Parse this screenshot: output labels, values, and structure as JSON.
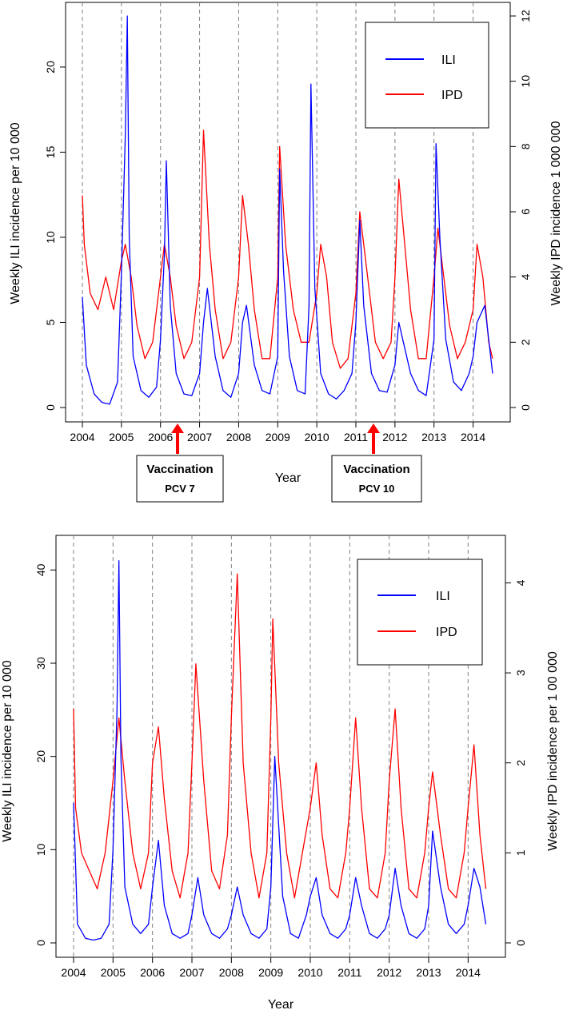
{
  "colors": {
    "ili": "#0000ff",
    "ipd": "#ff0000",
    "grid": "#808080",
    "arrow": "#ff0000"
  },
  "chart_data": [
    {
      "type": "line",
      "xlabel": "Year",
      "ylabel_left": "Weekly ILI incidence per 10 000",
      "ylabel_right": "Weekly IPD incidence 1 000 000",
      "x_ticks": [
        "2004",
        "2005",
        "2006",
        "2007",
        "2008",
        "2009",
        "2010",
        "2011",
        "2012",
        "2013",
        "2014"
      ],
      "xlim": [
        2004,
        2014.5
      ],
      "ylim_left": [
        0,
        23
      ],
      "ylim_right": [
        0,
        12
      ],
      "y_ticks_left": [
        "0",
        "5",
        "10",
        "15",
        "20"
      ],
      "y_ticks_right": [
        "0",
        "2",
        "4",
        "6",
        "8",
        "10",
        "12"
      ],
      "grid": "vertical dashed lines at each year",
      "legend_position": "top-right",
      "series": [
        {
          "name": "ILI",
          "axis": "left",
          "x": [
            2004.0,
            2004.1,
            2004.3,
            2004.5,
            2004.7,
            2004.9,
            2005.0,
            2005.1,
            2005.15,
            2005.2,
            2005.3,
            2005.5,
            2005.7,
            2005.9,
            2006.0,
            2006.1,
            2006.15,
            2006.25,
            2006.4,
            2006.6,
            2006.8,
            2007.0,
            2007.1,
            2007.2,
            2007.4,
            2007.6,
            2007.8,
            2008.0,
            2008.1,
            2008.2,
            2008.4,
            2008.6,
            2008.8,
            2009.0,
            2009.05,
            2009.15,
            2009.3,
            2009.5,
            2009.7,
            2009.8,
            2009.85,
            2009.95,
            2010.1,
            2010.3,
            2010.5,
            2010.7,
            2010.9,
            2011.0,
            2011.1,
            2011.2,
            2011.4,
            2011.6,
            2011.8,
            2012.0,
            2012.1,
            2012.2,
            2012.4,
            2012.6,
            2012.8,
            2013.0,
            2013.05,
            2013.15,
            2013.3,
            2013.5,
            2013.7,
            2013.9,
            2014.0,
            2014.1,
            2014.3,
            2014.5
          ],
          "y": [
            6.5,
            2.5,
            0.8,
            0.3,
            0.2,
            1.5,
            8,
            16,
            23,
            10,
            3,
            1,
            0.6,
            1.2,
            4,
            9,
            14.5,
            6,
            2,
            0.8,
            0.7,
            2,
            5,
            7,
            3,
            1,
            0.6,
            2,
            5,
            6,
            2.5,
            1,
            0.8,
            3,
            14,
            8,
            3,
            1,
            0.8,
            6,
            19,
            7,
            2,
            0.8,
            0.5,
            1,
            2,
            5,
            11,
            6,
            2,
            1,
            0.9,
            2.5,
            5,
            4,
            2,
            1,
            0.7,
            4,
            15.5,
            10,
            4,
            1.5,
            1,
            2,
            3,
            5,
            6,
            2
          ]
        },
        {
          "name": "IPD",
          "axis": "right",
          "x": [
            2004.0,
            2004.05,
            2004.2,
            2004.4,
            2004.6,
            2004.8,
            2005.0,
            2005.1,
            2005.25,
            2005.4,
            2005.6,
            2005.8,
            2006.0,
            2006.1,
            2006.25,
            2006.4,
            2006.6,
            2006.8,
            2007.0,
            2007.1,
            2007.25,
            2007.4,
            2007.6,
            2007.8,
            2008.0,
            2008.1,
            2008.25,
            2008.4,
            2008.6,
            2008.8,
            2009.0,
            2009.05,
            2009.2,
            2009.4,
            2009.6,
            2009.8,
            2010.0,
            2010.1,
            2010.25,
            2010.4,
            2010.6,
            2010.8,
            2011.0,
            2011.1,
            2011.3,
            2011.5,
            2011.7,
            2011.9,
            2012.0,
            2012.1,
            2012.25,
            2012.4,
            2012.6,
            2012.8,
            2013.0,
            2013.1,
            2013.25,
            2013.4,
            2013.6,
            2013.8,
            2014.0,
            2014.1,
            2014.25,
            2014.4,
            2014.5
          ],
          "y": [
            6.5,
            5,
            3.5,
            3,
            4,
            3,
            4.5,
            5,
            4,
            2.5,
            1.5,
            2,
            4,
            5,
            4,
            2.5,
            1.5,
            2,
            4,
            8.5,
            5,
            3,
            1.5,
            2,
            4,
            6.5,
            5,
            3,
            1.5,
            1.5,
            4,
            8,
            5,
            3,
            2,
            2,
            3.5,
            5,
            4,
            2,
            1.2,
            1.5,
            3.5,
            6,
            4,
            2,
            1.5,
            2,
            4,
            7,
            5,
            3,
            1.5,
            1.5,
            4,
            5.5,
            4,
            2.5,
            1.5,
            2,
            3,
            5,
            4,
            2,
            1.5
          ]
        }
      ],
      "annotations": [
        {
          "title": "Vaccination",
          "subtitle": "PCV 7",
          "x": 2006.4
        },
        {
          "title": "Vaccination",
          "subtitle": "PCV 10",
          "x": 2011.4
        }
      ]
    },
    {
      "type": "line",
      "xlabel": "Year",
      "ylabel_left": "Weekly ILI incidence per 10 000",
      "ylabel_right": "Weekly IPD incidence per 1 00 000",
      "x_ticks": [
        "2004",
        "2005",
        "2006",
        "2007",
        "2008",
        "2009",
        "2010",
        "2011",
        "2012",
        "2013",
        "2014"
      ],
      "xlim": [
        2004,
        2014.5
      ],
      "ylim_left": [
        0,
        42
      ],
      "ylim_right": [
        0,
        4.35
      ],
      "y_ticks_left": [
        "0",
        "10",
        "20",
        "30",
        "40"
      ],
      "y_ticks_right": [
        "0",
        "1",
        "2",
        "3",
        "4"
      ],
      "grid": "vertical dashed lines at each year",
      "legend_position": "top-right",
      "series": [
        {
          "name": "ILI",
          "axis": "left",
          "x": [
            2004.0,
            2004.1,
            2004.3,
            2004.5,
            2004.7,
            2004.9,
            2005.0,
            2005.1,
            2005.15,
            2005.2,
            2005.3,
            2005.5,
            2005.7,
            2005.9,
            2006.0,
            2006.15,
            2006.3,
            2006.5,
            2006.7,
            2006.9,
            2007.0,
            2007.15,
            2007.3,
            2007.5,
            2007.7,
            2007.9,
            2008.0,
            2008.15,
            2008.3,
            2008.5,
            2008.7,
            2008.9,
            2009.0,
            2009.1,
            2009.3,
            2009.5,
            2009.7,
            2009.9,
            2010.0,
            2010.15,
            2010.3,
            2010.5,
            2010.7,
            2010.9,
            2011.0,
            2011.15,
            2011.3,
            2011.5,
            2011.7,
            2011.9,
            2012.0,
            2012.15,
            2012.3,
            2012.5,
            2012.7,
            2012.9,
            2013.0,
            2013.1,
            2013.3,
            2013.5,
            2013.7,
            2013.9,
            2014.0,
            2014.15,
            2014.3,
            2014.45
          ],
          "y": [
            15,
            2,
            0.5,
            0.3,
            0.5,
            2,
            10,
            25,
            41,
            20,
            6,
            2,
            1,
            2,
            6,
            11,
            4,
            1,
            0.5,
            1,
            3,
            7,
            3,
            1,
            0.5,
            1.5,
            3,
            6,
            3,
            1,
            0.5,
            1.5,
            6,
            20,
            5,
            1,
            0.5,
            3,
            5,
            7,
            3,
            1,
            0.5,
            1.5,
            3,
            7,
            4,
            1,
            0.5,
            1.5,
            3,
            8,
            4,
            1,
            0.5,
            1.5,
            4,
            12,
            6,
            2,
            1,
            2,
            4,
            8,
            6,
            2
          ]
        },
        {
          "name": "IPD",
          "axis": "right",
          "x": [
            2004.0,
            2004.05,
            2004.2,
            2004.4,
            2004.6,
            2004.8,
            2005.0,
            2005.15,
            2005.3,
            2005.5,
            2005.7,
            2005.9,
            2006.0,
            2006.15,
            2006.3,
            2006.5,
            2006.7,
            2006.9,
            2007.0,
            2007.1,
            2007.3,
            2007.5,
            2007.7,
            2007.9,
            2008.0,
            2008.15,
            2008.3,
            2008.5,
            2008.7,
            2008.9,
            2009.0,
            2009.05,
            2009.2,
            2009.4,
            2009.6,
            2009.8,
            2010.0,
            2010.15,
            2010.3,
            2010.5,
            2010.7,
            2010.9,
            2011.0,
            2011.15,
            2011.3,
            2011.5,
            2011.7,
            2011.9,
            2012.0,
            2012.15,
            2012.3,
            2012.5,
            2012.7,
            2012.9,
            2013.0,
            2013.1,
            2013.3,
            2013.5,
            2013.7,
            2013.9,
            2014.0,
            2014.15,
            2014.3,
            2014.45
          ],
          "y": [
            2.6,
            1.5,
            1,
            0.8,
            0.6,
            1,
            1.8,
            2.5,
            1.8,
            1,
            0.6,
            1,
            2,
            2.4,
            1.6,
            0.8,
            0.5,
            1,
            2,
            3.1,
            1.8,
            0.8,
            0.6,
            1.2,
            2.5,
            4.1,
            2,
            1,
            0.5,
            1,
            2.5,
            3.6,
            2,
            1,
            0.5,
            1,
            1.5,
            2,
            1.2,
            0.6,
            0.5,
            1,
            1.5,
            2.5,
            1.5,
            0.6,
            0.5,
            1,
            1.8,
            2.6,
            1.5,
            0.6,
            0.5,
            1,
            1.5,
            1.9,
            1.2,
            0.6,
            0.5,
            1,
            1.5,
            2.2,
            1.2,
            0.6
          ]
        }
      ]
    }
  ]
}
